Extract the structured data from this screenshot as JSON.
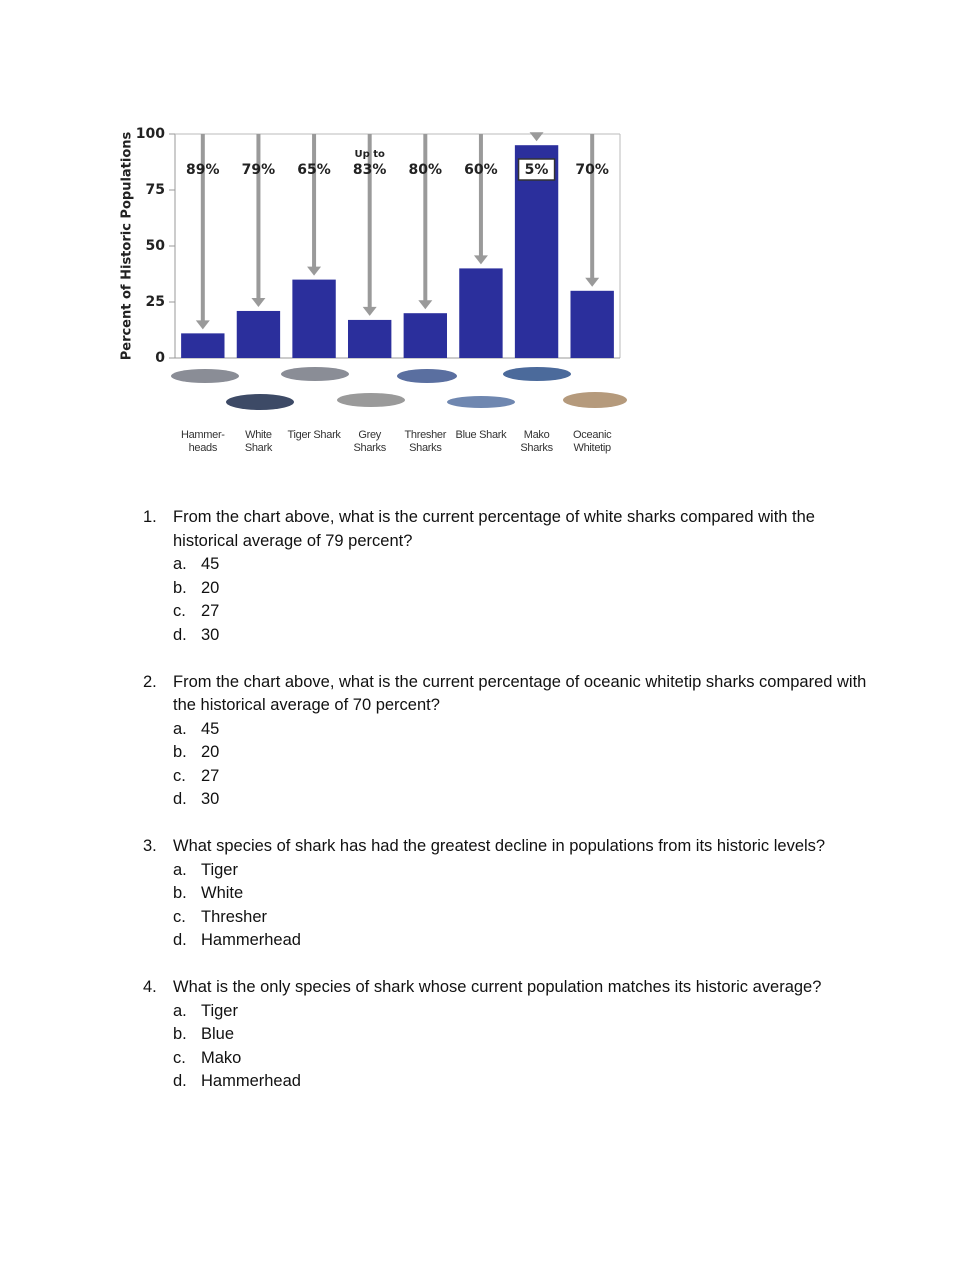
{
  "chart_data": {
    "type": "bar",
    "ylabel": "Percent of Historic Populations",
    "categories": [
      "Hammer-heads",
      "White Shark",
      "Tiger Shark",
      "Grey Sharks",
      "Thresher Sharks",
      "Blue Shark",
      "Mako Sharks",
      "Oceanic Whitetip"
    ],
    "values": [
      11,
      21,
      35,
      17,
      20,
      40,
      95,
      30
    ],
    "color": "#2b2f9c",
    "annotations": [
      {
        "text": "89%"
      },
      {
        "text": "79%"
      },
      {
        "text": "65%"
      },
      {
        "note": "Up to",
        "text": "83%"
      },
      {
        "text": "80%"
      },
      {
        "text": "60%"
      },
      {
        "text": "5%",
        "boxed": true
      },
      {
        "text": "70%"
      }
    ],
    "ylim": [
      0,
      100
    ],
    "yticks": [
      0,
      25,
      50,
      75,
      100
    ],
    "grid": false
  },
  "questions": [
    {
      "number": "1.",
      "text": "From the chart above, what is the current percentage of white sharks compared with the historical average of 79 percent?",
      "options": [
        {
          "letter": "a.",
          "text": "45"
        },
        {
          "letter": "b.",
          "text": "20"
        },
        {
          "letter": "c.",
          "text": "27"
        },
        {
          "letter": "d.",
          "text": "30"
        }
      ]
    },
    {
      "number": "2.",
      "text": "From the chart above, what is the current percentage of oceanic whitetip sharks compared with the historical average of 70 percent?",
      "options": [
        {
          "letter": "a.",
          "text": "45"
        },
        {
          "letter": "b.",
          "text": "20"
        },
        {
          "letter": "c.",
          "text": "27"
        },
        {
          "letter": "d.",
          "text": "30"
        }
      ]
    },
    {
      "number": "3.",
      "text": "What species of shark has had the greatest decline in populations from its historic levels?",
      "options": [
        {
          "letter": "a.",
          "text": "Tiger"
        },
        {
          "letter": "b.",
          "text": "White"
        },
        {
          "letter": "c.",
          "text": "Thresher"
        },
        {
          "letter": "d.",
          "text": "Hammerhead"
        }
      ]
    },
    {
      "number": "4.",
      "text": "What is the only species of shark whose current population matches its historic average?",
      "options": [
        {
          "letter": "a.",
          "text": "Tiger"
        },
        {
          "letter": "b.",
          "text": "Blue"
        },
        {
          "letter": "c.",
          "text": "Mako"
        },
        {
          "letter": "d.",
          "text": "Hammerhead"
        }
      ]
    }
  ]
}
